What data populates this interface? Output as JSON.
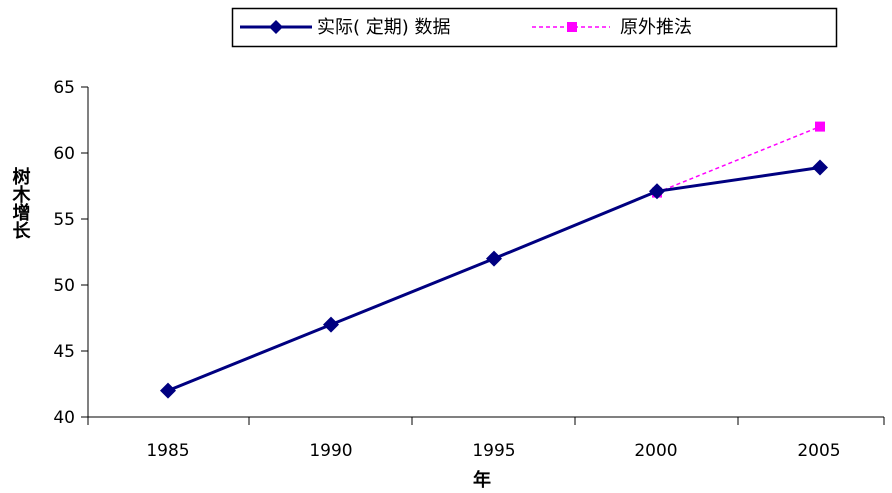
{
  "chart_data": {
    "type": "line",
    "x": [
      1985,
      1990,
      1995,
      2000,
      2005
    ],
    "x_tick_labels": [
      "1985",
      "1990",
      "1995",
      "2000",
      "2005"
    ],
    "xlabel": "年",
    "ylabel": "树木增长",
    "ylim": [
      40,
      65
    ],
    "y_ticks": [
      40,
      45,
      50,
      55,
      60,
      65
    ],
    "y_tick_labels": [
      "40",
      "45",
      "50",
      "55",
      "60",
      "65"
    ],
    "legend_position": "top",
    "grid": false,
    "series": [
      {
        "name": "实际( 定期) 数据",
        "x": [
          1985,
          1990,
          1995,
          2000,
          2005
        ],
        "values": [
          42,
          47,
          52,
          57.1,
          58.9
        ],
        "color": "#000080",
        "marker": "diamond",
        "line_style": "solid"
      },
      {
        "name": "原外推法",
        "x": [
          2000,
          2005
        ],
        "values": [
          57,
          62
        ],
        "color": "#ff00ff",
        "marker": "square",
        "line_style": "dashed"
      }
    ]
  }
}
